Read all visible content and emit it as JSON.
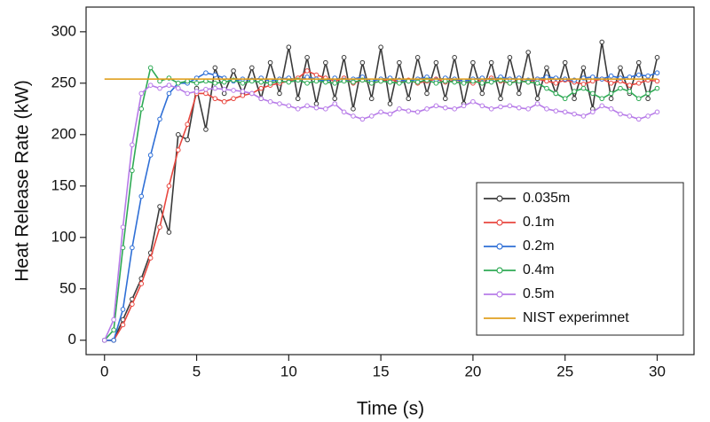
{
  "chart_data": {
    "type": "line",
    "x_label": "Time (s)",
    "y_label": "Heat Release Rate (kW)",
    "x": [
      0,
      0.5,
      1,
      1.5,
      2,
      2.5,
      3,
      3.5,
      4,
      4.5,
      5,
      5.5,
      6,
      6.5,
      7,
      7.5,
      8,
      8.5,
      9,
      9.5,
      10,
      10.5,
      11,
      11.5,
      12,
      12.5,
      13,
      13.5,
      14,
      14.5,
      15,
      15.5,
      16,
      16.5,
      17,
      17.5,
      18,
      18.5,
      19,
      19.5,
      20,
      20.5,
      21,
      21.5,
      22,
      22.5,
      23,
      23.5,
      24,
      24.5,
      25,
      25.5,
      26,
      26.5,
      27,
      27.5,
      28,
      28.5,
      29,
      29.5,
      30
    ],
    "series": [
      {
        "name": "0.035m",
        "color": "#3a3a3a",
        "markers": true,
        "values": [
          0,
          0,
          20,
          40,
          60,
          85,
          130,
          105,
          200,
          195,
          245,
          205,
          265,
          240,
          262,
          240,
          265,
          235,
          270,
          240,
          285,
          235,
          275,
          230,
          270,
          235,
          275,
          225,
          270,
          235,
          285,
          230,
          270,
          235,
          275,
          240,
          270,
          235,
          275,
          230,
          270,
          240,
          270,
          235,
          275,
          240,
          280,
          235,
          265,
          240,
          270,
          235,
          265,
          225,
          290,
          235,
          265,
          240,
          270,
          235,
          275
        ]
      },
      {
        "name": "0.1m",
        "color": "#e8473f",
        "markers": true,
        "values": [
          0,
          0,
          15,
          35,
          55,
          80,
          110,
          150,
          185,
          210,
          240,
          240,
          235,
          232,
          235,
          238,
          240,
          245,
          248,
          250,
          252,
          255,
          262,
          258,
          255,
          252,
          255,
          250,
          253,
          250,
          252,
          254,
          251,
          253,
          250,
          252,
          254,
          251,
          253,
          252,
          250,
          253,
          255,
          252,
          250,
          253,
          251,
          254,
          252,
          250,
          253,
          251,
          249,
          252,
          254,
          250,
          252,
          248,
          250,
          253,
          252
        ]
      },
      {
        "name": "0.2m",
        "color": "#2f6fd6",
        "markers": true,
        "values": [
          0,
          0,
          30,
          90,
          140,
          180,
          215,
          240,
          250,
          250,
          255,
          260,
          258,
          255,
          252,
          254,
          253,
          255,
          252,
          254,
          255,
          253,
          256,
          254,
          252,
          255,
          253,
          254,
          256,
          252,
          254,
          255,
          253,
          252,
          254,
          256,
          253,
          255,
          254,
          252,
          254,
          255,
          253,
          256,
          254,
          255,
          253,
          254,
          256,
          255,
          254,
          253,
          255,
          256,
          254,
          257,
          255,
          256,
          258,
          257,
          260
        ]
      },
      {
        "name": "0.4m",
        "color": "#2faa55",
        "markers": true,
        "values": [
          0,
          10,
          90,
          165,
          225,
          265,
          252,
          255,
          250,
          252,
          250,
          252,
          250,
          251,
          253,
          250,
          252,
          251,
          250,
          252,
          251,
          253,
          250,
          252,
          251,
          250,
          252,
          251,
          253,
          250,
          252,
          251,
          250,
          252,
          251,
          253,
          250,
          252,
          251,
          250,
          252,
          250,
          251,
          253,
          250,
          252,
          251,
          250,
          245,
          240,
          235,
          242,
          245,
          240,
          235,
          240,
          245,
          242,
          235,
          240,
          245
        ]
      },
      {
        "name": "0.5m",
        "color": "#b77be8",
        "markers": true,
        "values": [
          0,
          20,
          110,
          190,
          240,
          248,
          245,
          248,
          245,
          240,
          242,
          244,
          245,
          244,
          243,
          242,
          240,
          235,
          232,
          230,
          228,
          225,
          228,
          226,
          225,
          230,
          222,
          218,
          215,
          218,
          222,
          220,
          225,
          223,
          222,
          225,
          228,
          226,
          225,
          228,
          232,
          228,
          225,
          227,
          228,
          226,
          225,
          230,
          225,
          223,
          222,
          220,
          218,
          222,
          228,
          225,
          220,
          218,
          215,
          218,
          222
        ]
      },
      {
        "name": "NIST experimnet",
        "color": "#e0a020",
        "markers": false,
        "x": [
          0,
          30
        ],
        "values": [
          254,
          254
        ]
      }
    ],
    "xlim": [
      -1,
      32
    ],
    "ylim": [
      -14,
      324
    ],
    "xticks": [
      0,
      5,
      10,
      15,
      20,
      25,
      30
    ],
    "yticks": [
      0,
      50,
      100,
      150,
      200,
      250,
      300
    ],
    "legend": "lower right"
  }
}
